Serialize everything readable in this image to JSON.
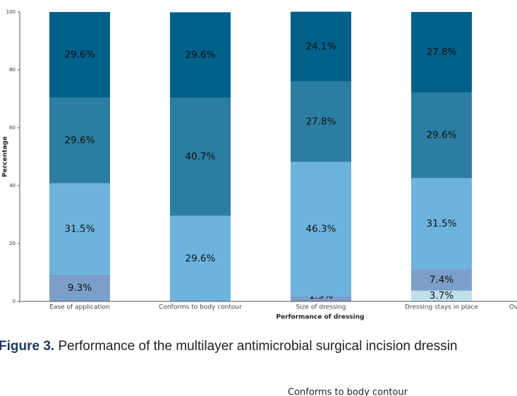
{
  "chart_data": {
    "type": "bar",
    "stacked": true,
    "categories": [
      "Ease of application",
      "Conforms to body contour",
      "Size of dressing",
      "Dressing stays in place",
      "Ov"
    ],
    "series": [
      {
        "color": "#bfe0ea",
        "values": [
          null,
          null,
          null,
          3.7,
          null
        ],
        "value_labels": [
          null,
          null,
          null,
          "3.7%",
          null
        ]
      },
      {
        "color": "#7b9fc9",
        "values": [
          9.3,
          null,
          1.9,
          7.4,
          null
        ],
        "value_labels": [
          "9.3%",
          null,
          "1.9%",
          "7.4%",
          null
        ]
      },
      {
        "color": "#6db3dd",
        "values": [
          31.5,
          29.6,
          46.3,
          31.5,
          null
        ],
        "value_labels": [
          "31.5%",
          "29.6%",
          "46.3%",
          "31.5%",
          null
        ]
      },
      {
        "color": "#2b7ea1",
        "values": [
          29.6,
          40.7,
          27.8,
          29.6,
          null
        ],
        "value_labels": [
          "29.6%",
          "40.7%",
          "27.8%",
          "29.6%",
          null
        ]
      },
      {
        "color": "#00608a",
        "values": [
          29.6,
          29.6,
          24.1,
          27.8,
          null
        ],
        "value_labels": [
          "29.6%",
          "29.6%",
          "24.1%",
          "27.8%",
          null
        ]
      }
    ],
    "ylim": [
      0,
      100
    ],
    "yticks": [
      0,
      20,
      40,
      60,
      80,
      100
    ],
    "ylabel": "Percentage",
    "xlabel": "Performance of dressing"
  },
  "caption": {
    "label": "Figure 3.",
    "text": " Performance of the multilayer antimicrobial surgical incision dressin"
  },
  "next_chart_title": "Conforms to body contour"
}
